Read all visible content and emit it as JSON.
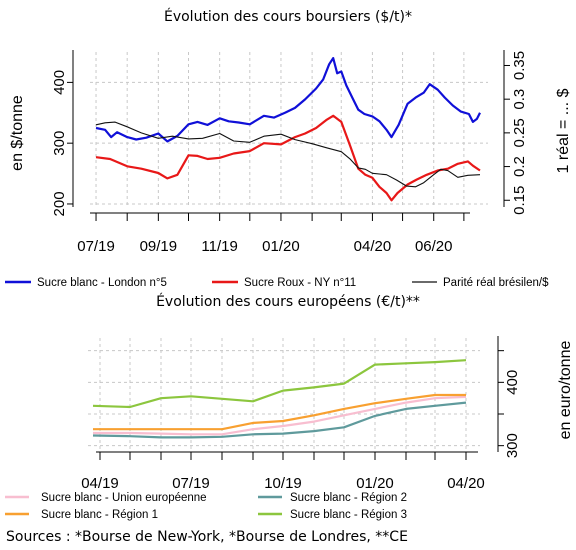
{
  "chart_data": [
    {
      "type": "line",
      "title": "Évolution des cours boursiers ($/t)*",
      "ylabel": "en $/tonne",
      "y2label": "1 réal = ... $",
      "ylim": [
        195,
        450
      ],
      "y2lim": [
        0.14,
        0.37
      ],
      "yticks": [
        200,
        300,
        400
      ],
      "y2ticks": [
        0.15,
        0.2,
        0.25,
        0.3,
        0.35
      ],
      "y2ticklabels": [
        "0.15",
        "0.2",
        "0.25",
        "0.3",
        "0.35"
      ],
      "xlim": [
        "2019-06-25",
        "2020-07-25"
      ],
      "xticks": [
        "2019-07-01",
        "2019-09-01",
        "2019-11-01",
        "2020-01-01",
        "2020-04-01",
        "2020-06-01"
      ],
      "xticklabels": [
        "07/19",
        "09/19",
        "11/19",
        "01/20",
        "04/20",
        "06/20"
      ],
      "grid": true,
      "legend_position": "bottom",
      "series": [
        {
          "name": "Sucre blanc - London n°5",
          "color": "#1010d8",
          "axis": "left",
          "points": [
            [
              "2019-07-01",
              325
            ],
            [
              "2019-07-10",
              322
            ],
            [
              "2019-07-16",
              310
            ],
            [
              "2019-07-22",
              318
            ],
            [
              "2019-08-01",
              310
            ],
            [
              "2019-08-10",
              306
            ],
            [
              "2019-08-20",
              309
            ],
            [
              "2019-09-01",
              316
            ],
            [
              "2019-09-10",
              303
            ],
            [
              "2019-09-20",
              312
            ],
            [
              "2019-10-01",
              331
            ],
            [
              "2019-10-10",
              335
            ],
            [
              "2019-10-20",
              330
            ],
            [
              "2019-11-01",
              341
            ],
            [
              "2019-11-10",
              336
            ],
            [
              "2019-11-20",
              334
            ],
            [
              "2019-12-01",
              331
            ],
            [
              "2019-12-15",
              345
            ],
            [
              "2019-12-25",
              342
            ],
            [
              "2020-01-05",
              350
            ],
            [
              "2020-01-15",
              358
            ],
            [
              "2020-01-25",
              372
            ],
            [
              "2020-02-05",
              390
            ],
            [
              "2020-02-12",
              405
            ],
            [
              "2020-02-18",
              430
            ],
            [
              "2020-02-22",
              440
            ],
            [
              "2020-02-26",
              415
            ],
            [
              "2020-03-01",
              418
            ],
            [
              "2020-03-06",
              395
            ],
            [
              "2020-03-12",
              375
            ],
            [
              "2020-03-18",
              355
            ],
            [
              "2020-03-24",
              348
            ],
            [
              "2020-04-01",
              344
            ],
            [
              "2020-04-08",
              336
            ],
            [
              "2020-04-15",
              322
            ],
            [
              "2020-04-20",
              310
            ],
            [
              "2020-04-27",
              330
            ],
            [
              "2020-05-06",
              365
            ],
            [
              "2020-05-14",
              375
            ],
            [
              "2020-05-22",
              383
            ],
            [
              "2020-05-28",
              397
            ],
            [
              "2020-06-05",
              388
            ],
            [
              "2020-06-12",
              375
            ],
            [
              "2020-06-20",
              362
            ],
            [
              "2020-06-28",
              352
            ],
            [
              "2020-07-06",
              348
            ],
            [
              "2020-07-10",
              335
            ],
            [
              "2020-07-14",
              340
            ],
            [
              "2020-07-17",
              350
            ]
          ]
        },
        {
          "name": "Sucre Roux - NY n°11",
          "color": "#e81818",
          "axis": "left",
          "points": [
            [
              "2019-07-01",
              277
            ],
            [
              "2019-07-15",
              274
            ],
            [
              "2019-08-01",
              262
            ],
            [
              "2019-08-15",
              258
            ],
            [
              "2019-09-01",
              251
            ],
            [
              "2019-09-10",
              242
            ],
            [
              "2019-09-20",
              248
            ],
            [
              "2019-10-01",
              280
            ],
            [
              "2019-10-10",
              279
            ],
            [
              "2019-10-20",
              274
            ],
            [
              "2019-11-01",
              276
            ],
            [
              "2019-11-15",
              283
            ],
            [
              "2019-12-01",
              287
            ],
            [
              "2019-12-15",
              300
            ],
            [
              "2020-01-01",
              298
            ],
            [
              "2020-01-15",
              310
            ],
            [
              "2020-01-25",
              316
            ],
            [
              "2020-02-05",
              325
            ],
            [
              "2020-02-15",
              338
            ],
            [
              "2020-02-22",
              345
            ],
            [
              "2020-03-01",
              335
            ],
            [
              "2020-03-10",
              295
            ],
            [
              "2020-03-18",
              258
            ],
            [
              "2020-03-25",
              248
            ],
            [
              "2020-04-01",
              243
            ],
            [
              "2020-04-08",
              228
            ],
            [
              "2020-04-15",
              218
            ],
            [
              "2020-04-20",
              206
            ],
            [
              "2020-04-26",
              218
            ],
            [
              "2020-05-06",
              232
            ],
            [
              "2020-05-15",
              240
            ],
            [
              "2020-05-25",
              248
            ],
            [
              "2020-06-05",
              255
            ],
            [
              "2020-06-15",
              258
            ],
            [
              "2020-06-25",
              266
            ],
            [
              "2020-07-05",
              270
            ],
            [
              "2020-07-10",
              263
            ],
            [
              "2020-07-17",
              255
            ]
          ]
        },
        {
          "name": "Parité réal brésilen/$",
          "color": "#111111",
          "axis": "right",
          "points": [
            [
              "2019-07-01",
              0.262
            ],
            [
              "2019-07-10",
              0.265
            ],
            [
              "2019-07-20",
              0.266
            ],
            [
              "2019-08-01",
              0.259
            ],
            [
              "2019-08-15",
              0.25
            ],
            [
              "2019-09-01",
              0.242
            ],
            [
              "2019-09-15",
              0.245
            ],
            [
              "2019-10-01",
              0.241
            ],
            [
              "2019-10-15",
              0.242
            ],
            [
              "2019-11-01",
              0.249
            ],
            [
              "2019-11-15",
              0.238
            ],
            [
              "2019-12-01",
              0.236
            ],
            [
              "2019-12-15",
              0.245
            ],
            [
              "2020-01-01",
              0.248
            ],
            [
              "2020-01-15",
              0.24
            ],
            [
              "2020-02-01",
              0.234
            ],
            [
              "2020-02-15",
              0.228
            ],
            [
              "2020-03-01",
              0.222
            ],
            [
              "2020-03-10",
              0.211
            ],
            [
              "2020-03-18",
              0.198
            ],
            [
              "2020-03-25",
              0.196
            ],
            [
              "2020-04-01",
              0.19
            ],
            [
              "2020-04-15",
              0.188
            ],
            [
              "2020-04-25",
              0.18
            ],
            [
              "2020-05-05",
              0.171
            ],
            [
              "2020-05-14",
              0.17
            ],
            [
              "2020-05-22",
              0.176
            ],
            [
              "2020-06-01",
              0.188
            ],
            [
              "2020-06-08",
              0.196
            ],
            [
              "2020-06-15",
              0.194
            ],
            [
              "2020-06-25",
              0.184
            ],
            [
              "2020-07-05",
              0.187
            ],
            [
              "2020-07-17",
              0.188
            ]
          ]
        }
      ]
    },
    {
      "type": "line",
      "title": "Évolution des cours européens (€/t)**",
      "ylabel": "en euro/tonne",
      "ylim": [
        290,
        470
      ],
      "yticks": [
        300,
        350,
        400,
        450
      ],
      "yticklabels": [
        "300",
        "",
        "400",
        ""
      ],
      "xlim": [
        "2019-03-20",
        "2020-04-15"
      ],
      "xticks": [
        "2019-04-01",
        "2019-07-01",
        "2019-10-01",
        "2020-01-01",
        "2020-04-01"
      ],
      "xticklabels": [
        "04/19",
        "07/19",
        "10/19",
        "01/20",
        "04/20"
      ],
      "grid": true,
      "legend_position": "bottom",
      "series": [
        {
          "name": "Sucre blanc - Union européenne",
          "color": "#f8bed0",
          "points": [
            [
              "2019-03-25",
              320
            ],
            [
              "2019-05-01",
              320
            ],
            [
              "2019-06-01",
              319
            ],
            [
              "2019-07-01",
              318
            ],
            [
              "2019-08-01",
              318
            ],
            [
              "2019-09-01",
              326
            ],
            [
              "2019-10-01",
              331
            ],
            [
              "2019-11-01",
              338
            ],
            [
              "2019-12-01",
              348
            ],
            [
              "2020-01-01",
              358
            ],
            [
              "2020-02-01",
              368
            ],
            [
              "2020-03-01",
              375
            ],
            [
              "2020-04-01",
              377
            ]
          ]
        },
        {
          "name": "Sucre blanc - Région 1",
          "color": "#f8a030",
          "points": [
            [
              "2019-03-25",
              326
            ],
            [
              "2019-05-01",
              326
            ],
            [
              "2019-06-01",
              326
            ],
            [
              "2019-07-01",
              326
            ],
            [
              "2019-08-01",
              326
            ],
            [
              "2019-09-01",
              336
            ],
            [
              "2019-10-01",
              339
            ],
            [
              "2019-11-01",
              348
            ],
            [
              "2019-12-01",
              358
            ],
            [
              "2020-01-01",
              367
            ],
            [
              "2020-02-01",
              374
            ],
            [
              "2020-03-01",
              380
            ],
            [
              "2020-04-01",
              380
            ]
          ]
        },
        {
          "name": "Sucre blanc - Région 2",
          "color": "#5f9a9c",
          "points": [
            [
              "2019-03-25",
              316
            ],
            [
              "2019-05-01",
              315
            ],
            [
              "2019-06-01",
              313
            ],
            [
              "2019-07-01",
              313
            ],
            [
              "2019-08-01",
              314
            ],
            [
              "2019-09-01",
              318
            ],
            [
              "2019-10-01",
              319
            ],
            [
              "2019-11-01",
              323
            ],
            [
              "2019-12-01",
              329
            ],
            [
              "2020-01-01",
              347
            ],
            [
              "2020-02-01",
              358
            ],
            [
              "2020-03-01",
              363
            ],
            [
              "2020-04-01",
              368
            ]
          ]
        },
        {
          "name": "Sucre blanc - Région 3",
          "color": "#8cc63e",
          "points": [
            [
              "2019-03-25",
              363
            ],
            [
              "2019-05-01",
              361
            ],
            [
              "2019-06-01",
              375
            ],
            [
              "2019-07-01",
              378
            ],
            [
              "2019-08-01",
              374
            ],
            [
              "2019-09-01",
              370
            ],
            [
              "2019-10-01",
              387
            ],
            [
              "2019-11-01",
              392
            ],
            [
              "2019-12-01",
              398
            ],
            [
              "2020-01-01",
              428
            ],
            [
              "2020-02-01",
              430
            ],
            [
              "2020-03-01",
              432
            ],
            [
              "2020-04-01",
              435
            ]
          ]
        }
      ]
    }
  ],
  "source_note": "Sources : *Bourse de New-York, *Bourse de Londres, **CE"
}
